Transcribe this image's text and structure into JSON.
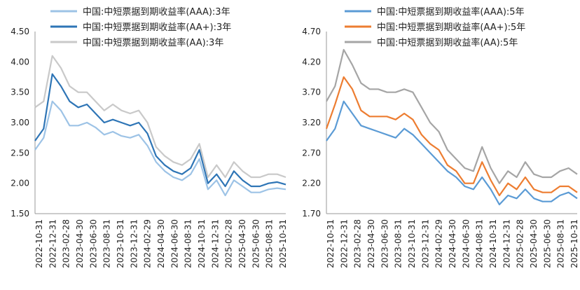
{
  "chart_data": [
    {
      "type": "line",
      "x_ticks": [
        "2022-10-31",
        "2022-12-31",
        "2023-02-28",
        "2023-04-30",
        "2023-06-30",
        "2023-08-31",
        "2023-10-31",
        "2023-12-31",
        "2024-02-29",
        "2024-04-30",
        "2024-06-30",
        "2024-08-31",
        "2024-10-31",
        "2024-12-31",
        "2025-02-28",
        "2025-04-30",
        "2025-06-30",
        "2025-08-31",
        "2025-10-31"
      ],
      "y_ticks": [
        "4.50",
        "4.00",
        "3.50",
        "3.00",
        "2.50",
        "2.00",
        "1.50"
      ],
      "ylim": [
        1.5,
        4.5
      ],
      "legend_placement": "top",
      "grid": false,
      "series": [
        {
          "name": "中国:中短票据到期收益率(AAA):3年",
          "color": "#9DC3E6",
          "values": [
            2.55,
            2.75,
            3.35,
            3.2,
            2.95,
            2.95,
            3.0,
            2.92,
            2.8,
            2.85,
            2.78,
            2.75,
            2.8,
            2.62,
            2.35,
            2.2,
            2.1,
            2.05,
            2.15,
            2.4,
            1.9,
            2.05,
            1.8,
            2.05,
            1.95,
            1.85,
            1.85,
            1.9,
            1.92,
            1.9
          ]
        },
        {
          "name": "中国:中短票据到期收益率(AA+):3年",
          "color": "#2E75B6",
          "values": [
            2.7,
            2.9,
            3.8,
            3.6,
            3.35,
            3.25,
            3.3,
            3.15,
            3.0,
            3.05,
            3.0,
            2.95,
            3.0,
            2.82,
            2.45,
            2.3,
            2.2,
            2.15,
            2.25,
            2.55,
            2.0,
            2.15,
            1.95,
            2.2,
            2.05,
            1.95,
            1.95,
            2.0,
            2.02,
            1.98
          ]
        },
        {
          "name": "中国:中短票据到期收益率(AA):3年",
          "color": "#C9C9C9",
          "values": [
            3.25,
            3.35,
            4.1,
            3.9,
            3.6,
            3.5,
            3.5,
            3.35,
            3.2,
            3.3,
            3.2,
            3.15,
            3.2,
            3.0,
            2.6,
            2.45,
            2.35,
            2.3,
            2.4,
            2.65,
            2.1,
            2.3,
            2.1,
            2.35,
            2.2,
            2.1,
            2.1,
            2.15,
            2.15,
            2.1
          ]
        }
      ]
    },
    {
      "type": "line",
      "x_ticks": [
        "2022-10-31",
        "2022-12-31",
        "2023-02-28",
        "2023-04-30",
        "2023-06-30",
        "2023-08-31",
        "2023-10-31",
        "2023-12-31",
        "2024-02-29",
        "2024-04-30",
        "2024-06-30",
        "2024-08-31",
        "2024-10-31",
        "2024-12-31",
        "2025-02-28",
        "2025-04-30",
        "2025-06-30",
        "2025-08-31",
        "2025-10-31"
      ],
      "y_ticks": [
        "4.70",
        "4.20",
        "3.70",
        "3.20",
        "2.70",
        "2.20",
        "1.70"
      ],
      "ylim": [
        1.7,
        4.7
      ],
      "legend_placement": "top",
      "grid": false,
      "series": [
        {
          "name": "中国:中短票据到期收益率(AAA):5年",
          "color": "#5B9BD5",
          "values": [
            2.9,
            3.1,
            3.55,
            3.35,
            3.15,
            3.1,
            3.05,
            3.0,
            2.95,
            3.1,
            3.0,
            2.85,
            2.7,
            2.55,
            2.4,
            2.3,
            2.15,
            2.1,
            2.3,
            2.1,
            1.85,
            2.0,
            1.95,
            2.1,
            1.95,
            1.9,
            1.9,
            2.0,
            2.05,
            1.95
          ]
        },
        {
          "name": "中国:中短票据到期收益率(AA+):5年",
          "color": "#ED7D31",
          "values": [
            3.1,
            3.5,
            3.95,
            3.75,
            3.4,
            3.3,
            3.3,
            3.3,
            3.25,
            3.35,
            3.25,
            3.0,
            2.85,
            2.75,
            2.5,
            2.4,
            2.2,
            2.2,
            2.55,
            2.25,
            2.0,
            2.2,
            2.1,
            2.3,
            2.1,
            2.05,
            2.05,
            2.15,
            2.15,
            2.05
          ]
        },
        {
          "name": "中国:中短票据到期收益率(AA):5年",
          "color": "#A5A5A5",
          "values": [
            3.55,
            3.8,
            4.4,
            4.15,
            3.85,
            3.75,
            3.75,
            3.7,
            3.7,
            3.75,
            3.7,
            3.45,
            3.2,
            3.05,
            2.75,
            2.6,
            2.45,
            2.4,
            2.8,
            2.45,
            2.2,
            2.4,
            2.3,
            2.55,
            2.35,
            2.3,
            2.3,
            2.4,
            2.45,
            2.35
          ]
        }
      ]
    }
  ]
}
